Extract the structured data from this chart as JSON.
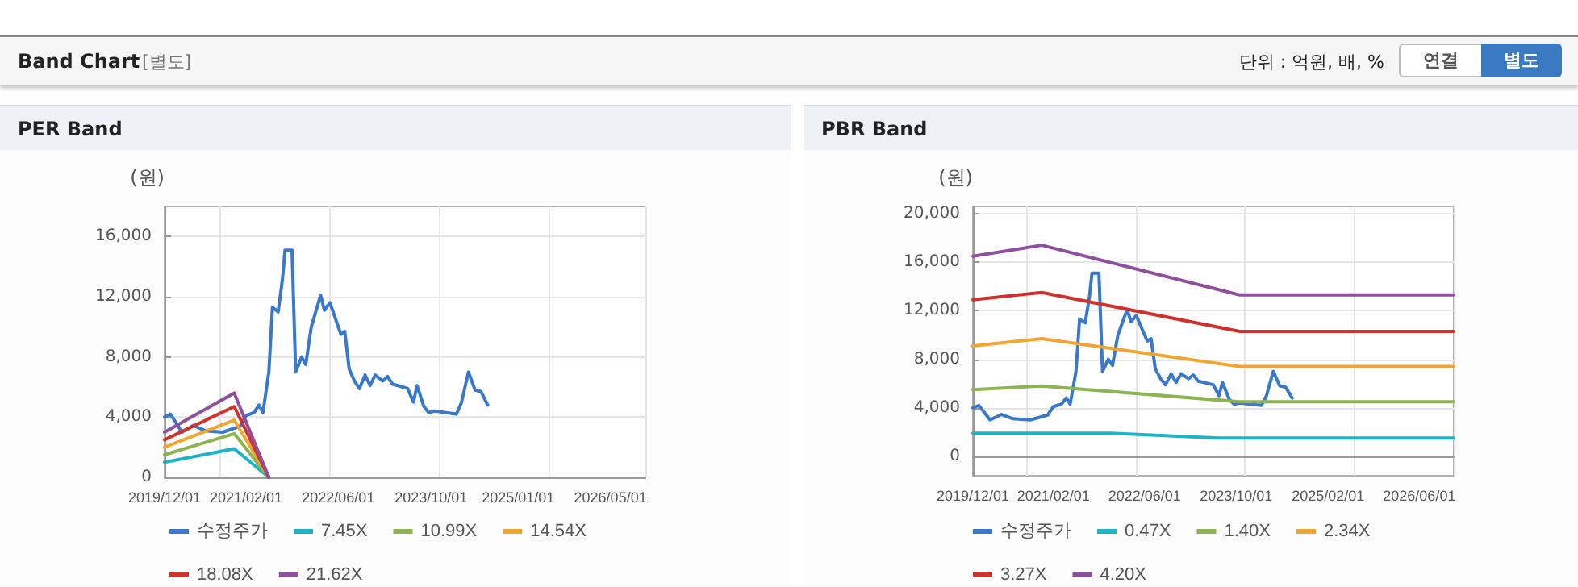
{
  "chart_data": [
    {
      "type": "line",
      "title": "PER Band",
      "ylabel": "(원)",
      "annotations": [
        "Band Chart",
        "[별도]",
        "단위 : 억원, 배, %",
        "연결",
        "별도"
      ],
      "xlim": [
        "2019-12-01",
        "2026-11-01"
      ],
      "xticks": [
        {
          "value": "2019-12-01",
          "label": "2019/12/01"
        },
        {
          "value": "2021-02-01",
          "label": "2021/02/01"
        },
        {
          "value": "2022-06-01",
          "label": "2022/06/01"
        },
        {
          "value": "2023-10-01",
          "label": "2023/10/01"
        },
        {
          "value": "2025-01-01",
          "label": "2025/01/01"
        },
        {
          "value": "2026-05-01",
          "label": "2026/05/01"
        }
      ],
      "ylim": [
        0,
        18000
      ],
      "yticks": [
        {
          "value": 0,
          "label": "0"
        },
        {
          "value": 4000,
          "label": "4,000"
        },
        {
          "value": 8000,
          "label": "8,000"
        },
        {
          "value": 12000,
          "label": "12,000"
        },
        {
          "value": 16000,
          "label": "16,000"
        }
      ],
      "grid": true,
      "legend": "bottom",
      "marker": "none",
      "line_style": "solid",
      "series": [
        {
          "name": "수정주가",
          "color": "#3a78c9",
          "x": [
            "2019-12-01",
            "2020-01-01",
            "2020-03-01",
            "2020-05-01",
            "2020-07-01",
            "2020-10-01",
            "2021-01-01",
            "2021-02-01",
            "2021-03-15",
            "2021-04-10",
            "2021-05-01",
            "2021-06-01",
            "2021-06-20",
            "2021-07-20",
            "2021-08-12",
            "2021-08-25",
            "2021-10-01",
            "2021-10-20",
            "2021-11-20",
            "2021-12-12",
            "2022-01-10",
            "2022-02-28",
            "2022-03-20",
            "2022-04-18",
            "2022-06-01",
            "2022-06-15",
            "2022-07-05",
            "2022-07-28",
            "2022-08-25",
            "2022-09-20",
            "2022-10-20",
            "2022-11-15",
            "2022-12-12",
            "2023-01-20",
            "2023-02-15",
            "2023-03-12",
            "2023-06-01",
            "2023-07-01",
            "2023-07-20",
            "2023-08-25",
            "2023-09-20",
            "2023-10-20",
            "2024-02-12",
            "2024-03-10",
            "2024-04-15",
            "2024-05-20",
            "2024-06-20",
            "2024-07-25"
          ],
          "values": [
            4000,
            4200,
            3000,
            3450,
            3100,
            3000,
            3400,
            4100,
            4300,
            4800,
            4300,
            7000,
            11300,
            11000,
            13200,
            15100,
            15100,
            7000,
            8000,
            7500,
            10000,
            12100,
            11100,
            11600,
            10000,
            9500,
            9700,
            7200,
            6400,
            5900,
            6800,
            6100,
            6800,
            6400,
            6700,
            6200,
            5900,
            5000,
            6100,
            4700,
            4300,
            4400,
            4200,
            5000,
            7000,
            5800,
            5700,
            4800
          ]
        },
        {
          "name": "7.45X",
          "color": "#1fb3c6",
          "x": [
            "2019-12-01",
            "2020-12-01",
            "2021-06-01"
          ],
          "values": [
            1000,
            1900,
            0
          ]
        },
        {
          "name": "10.99X",
          "color": "#8cb552",
          "x": [
            "2019-12-01",
            "2020-12-01",
            "2021-06-01"
          ],
          "values": [
            1500,
            2900,
            0
          ]
        },
        {
          "name": "14.54X",
          "color": "#f0a630",
          "x": [
            "2019-12-01",
            "2020-12-01",
            "2021-06-01"
          ],
          "values": [
            2000,
            3800,
            0
          ]
        },
        {
          "name": "18.08X",
          "color": "#d0312d",
          "x": [
            "2019-12-01",
            "2020-12-01",
            "2021-06-01"
          ],
          "values": [
            2500,
            4700,
            0
          ]
        },
        {
          "name": "21.62X",
          "color": "#8e4f9c",
          "x": [
            "2019-12-01",
            "2020-12-01",
            "2021-06-01"
          ],
          "values": [
            3000,
            5600,
            0
          ]
        }
      ]
    },
    {
      "type": "line",
      "title": "PBR Band",
      "ylabel": "(원)",
      "xlim": [
        "2019-12-01",
        "2026-12-01"
      ],
      "xticks": [
        {
          "value": "2019-12-01",
          "label": "2019/12/01"
        },
        {
          "value": "2021-02-01",
          "label": "2021/02/01"
        },
        {
          "value": "2022-06-01",
          "label": "2022/06/01"
        },
        {
          "value": "2023-10-01",
          "label": "2023/10/01"
        },
        {
          "value": "2025-02-01",
          "label": "2025/02/01"
        },
        {
          "value": "2026-06-01",
          "label": "2026/06/01"
        }
      ],
      "ylim": [
        -1600,
        20600
      ],
      "yticks": [
        {
          "value": 0,
          "label": "0"
        },
        {
          "value": 4000,
          "label": "4,000"
        },
        {
          "value": 8000,
          "label": "8,000"
        },
        {
          "value": 12000,
          "label": "12,000"
        },
        {
          "value": 16000,
          "label": "16,000"
        },
        {
          "value": 20000,
          "label": "20,000"
        }
      ],
      "grid": true,
      "legend": "bottom",
      "marker": "none",
      "line_style": "solid",
      "series": [
        {
          "name": "수정주가",
          "color": "#3a78c9",
          "x": [
            "2019-12-01",
            "2020-01-01",
            "2020-03-01",
            "2020-05-01",
            "2020-07-01",
            "2020-10-01",
            "2021-01-01",
            "2021-02-01",
            "2021-03-15",
            "2021-04-10",
            "2021-05-01",
            "2021-06-01",
            "2021-06-20",
            "2021-07-20",
            "2021-08-12",
            "2021-08-25",
            "2021-10-01",
            "2021-10-20",
            "2021-11-20",
            "2021-12-12",
            "2022-01-10",
            "2022-02-28",
            "2022-03-20",
            "2022-04-18",
            "2022-06-01",
            "2022-06-15",
            "2022-07-05",
            "2022-07-28",
            "2022-08-25",
            "2022-09-20",
            "2022-10-20",
            "2022-11-15",
            "2022-12-12",
            "2023-01-20",
            "2023-02-15",
            "2023-03-12",
            "2023-06-01",
            "2023-07-01",
            "2023-07-20",
            "2023-08-25",
            "2023-09-20",
            "2023-10-20",
            "2024-02-12",
            "2024-03-10",
            "2024-04-15",
            "2024-05-20",
            "2024-06-20",
            "2024-07-25"
          ],
          "values": [
            4000,
            4200,
            3000,
            3450,
            3100,
            3000,
            3400,
            4100,
            4300,
            4800,
            4300,
            7000,
            11300,
            11000,
            13200,
            15100,
            15100,
            7000,
            8000,
            7500,
            10000,
            12100,
            11100,
            11600,
            10000,
            9500,
            9700,
            7200,
            6400,
            5900,
            6800,
            6100,
            6800,
            6400,
            6700,
            6200,
            5900,
            5000,
            6100,
            4700,
            4300,
            4400,
            4200,
            5000,
            7000,
            5800,
            5700,
            4800
          ]
        },
        {
          "name": "0.47X",
          "color": "#1fb3c6",
          "x": [
            "2019-12-01",
            "2021-12-01",
            "2023-07-01",
            "2026-12-01"
          ],
          "values": [
            1900,
            1900,
            1500,
            1500
          ]
        },
        {
          "name": "1.40X",
          "color": "#8cb552",
          "x": [
            "2019-12-01",
            "2020-12-01",
            "2023-10-20",
            "2026-12-01"
          ],
          "values": [
            5500,
            5800,
            4500,
            4500
          ]
        },
        {
          "name": "2.34X",
          "color": "#f0a630",
          "x": [
            "2019-12-01",
            "2020-12-01",
            "2023-10-20",
            "2026-12-01"
          ],
          "values": [
            9100,
            9700,
            7400,
            7400
          ]
        },
        {
          "name": "3.27X",
          "color": "#d0312d",
          "x": [
            "2019-12-01",
            "2020-12-01",
            "2023-10-20",
            "2026-12-01"
          ],
          "values": [
            12900,
            13500,
            10300,
            10300
          ]
        },
        {
          "name": "4.20X",
          "color": "#8e4f9c",
          "x": [
            "2019-12-01",
            "2020-12-01",
            "2023-10-20",
            "2026-12-01"
          ],
          "values": [
            16500,
            17400,
            13300,
            13300
          ]
        }
      ]
    }
  ]
}
